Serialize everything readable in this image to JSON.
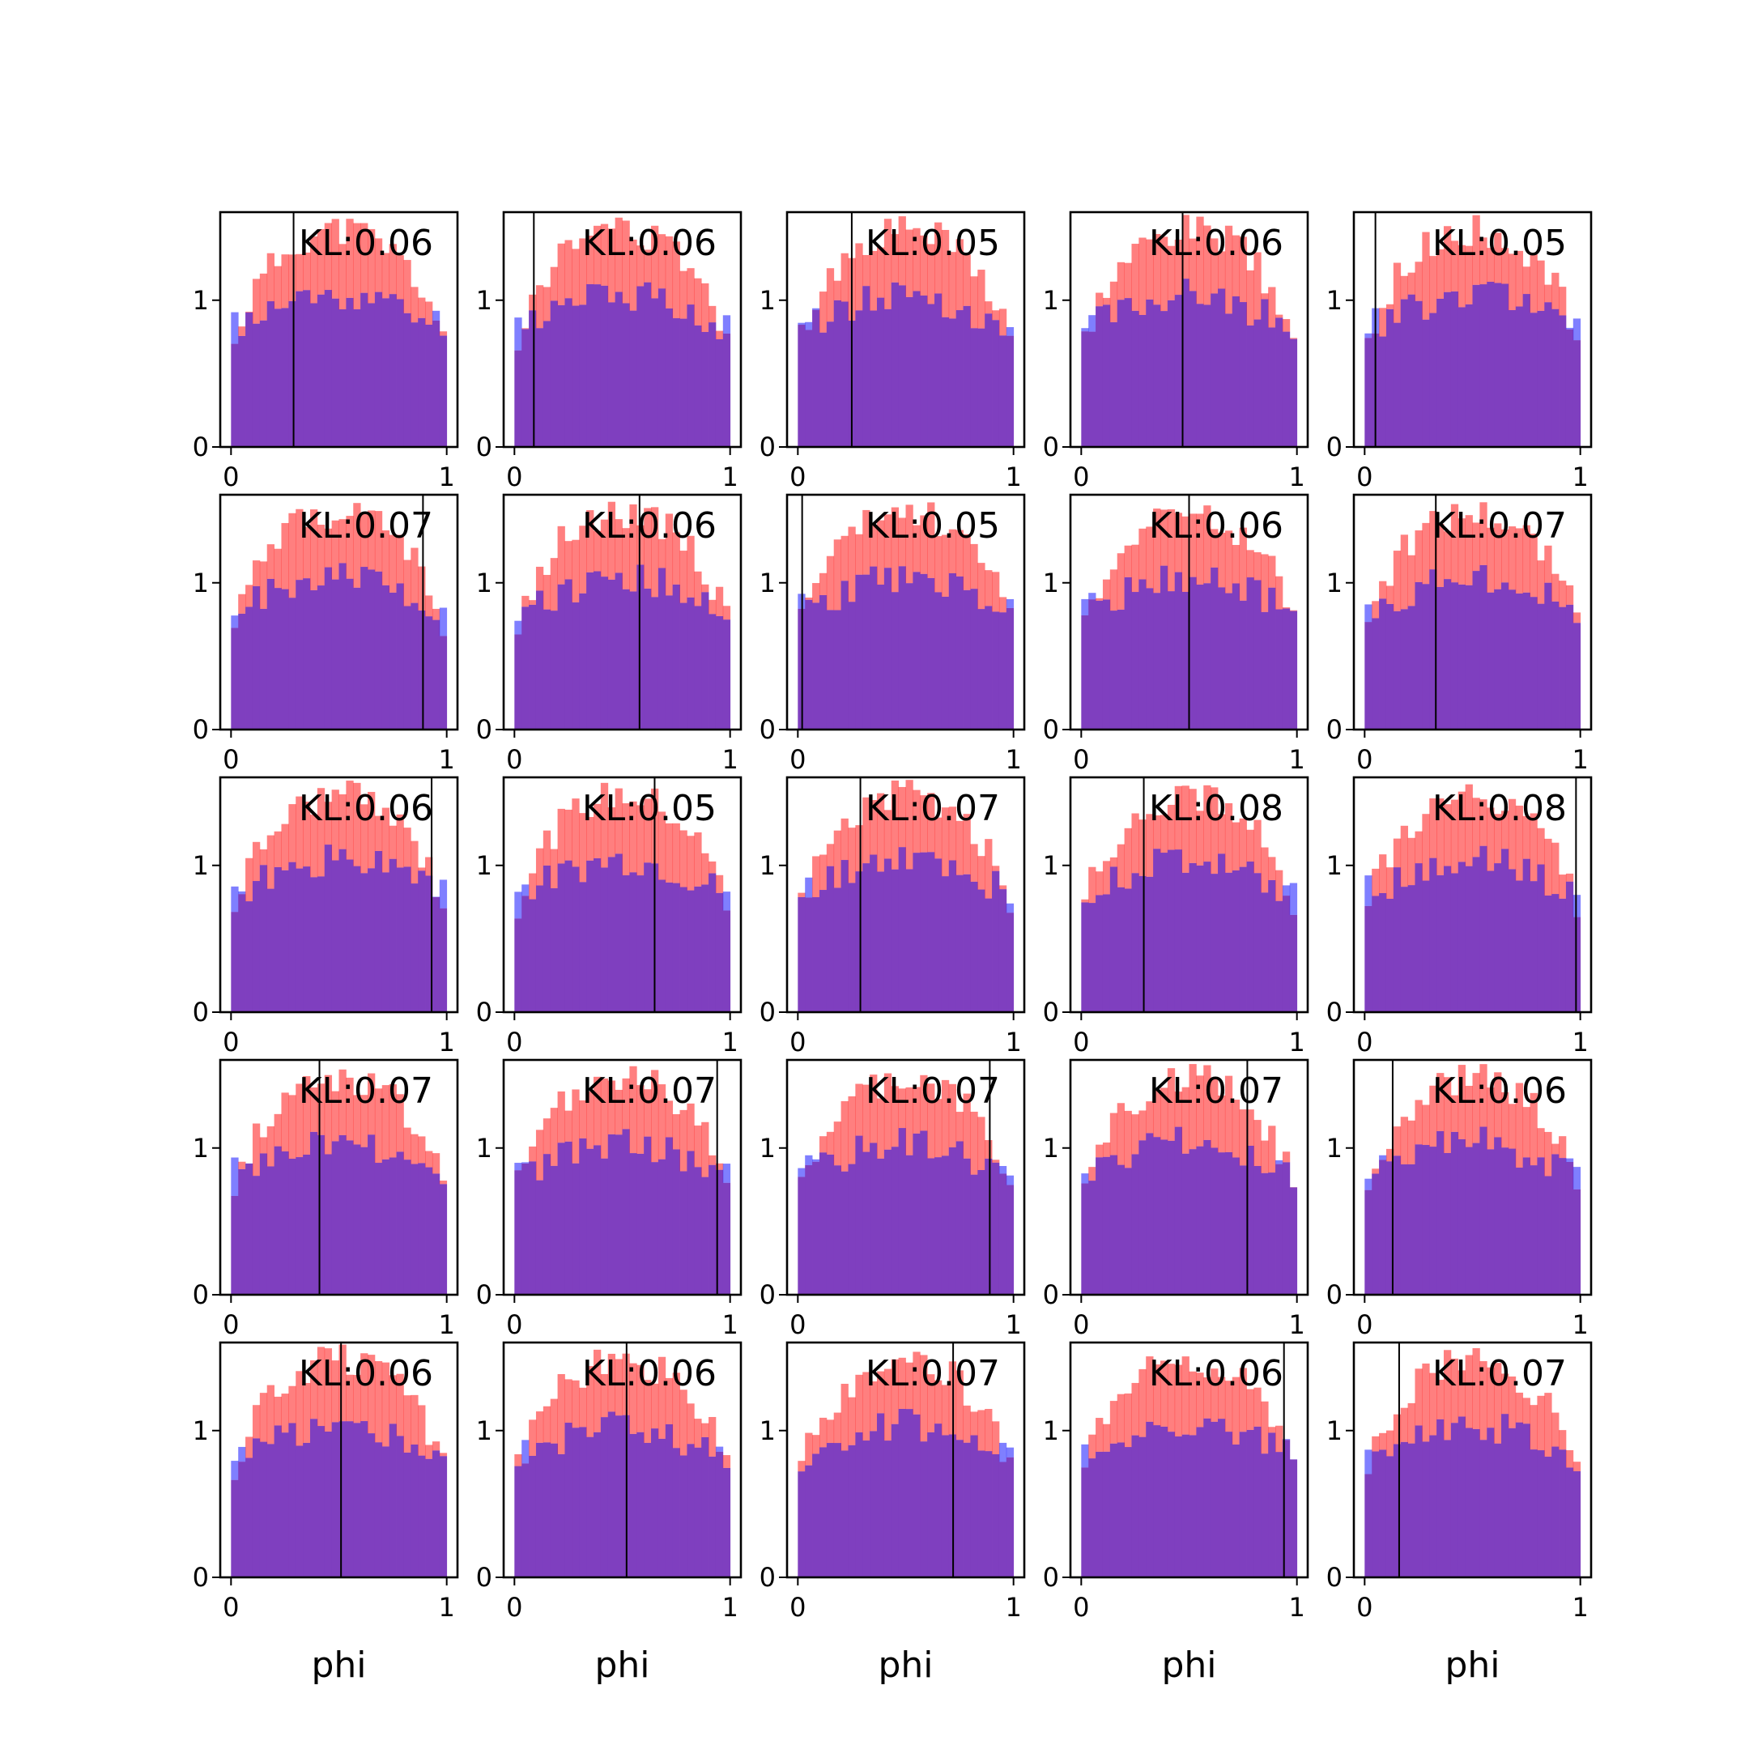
{
  "chart_data": {
    "type": "histogram-grid",
    "rows": 5,
    "cols": 5,
    "xlabel": "phi",
    "xlim": [
      0,
      1
    ],
    "ylim": [
      0,
      1.6
    ],
    "xticks": [
      0,
      1
    ],
    "yticks": [
      0,
      1
    ],
    "bins": 30,
    "colors": {
      "blue": "#0000ff",
      "red": "#ff0000",
      "overlap": "#7f3fbf",
      "vline": "#000000",
      "axes": "#000000",
      "background": "#ffffff"
    },
    "series_alpha": 0.5,
    "panels": [
      {
        "row": 0,
        "col": 0,
        "kl": "KL:0.06",
        "vline": 0.29,
        "seed": 11
      },
      {
        "row": 0,
        "col": 1,
        "kl": "KL:0.06",
        "vline": 0.09,
        "seed": 12
      },
      {
        "row": 0,
        "col": 2,
        "kl": "KL:0.05",
        "vline": 0.25,
        "seed": 13
      },
      {
        "row": 0,
        "col": 3,
        "kl": "KL:0.06",
        "vline": 0.47,
        "seed": 14
      },
      {
        "row": 0,
        "col": 4,
        "kl": "KL:0.05",
        "vline": 0.05,
        "seed": 15
      },
      {
        "row": 1,
        "col": 0,
        "kl": "KL:0.07",
        "vline": 0.89,
        "seed": 21
      },
      {
        "row": 1,
        "col": 1,
        "kl": "KL:0.06",
        "vline": 0.58,
        "seed": 22
      },
      {
        "row": 1,
        "col": 2,
        "kl": "KL:0.05",
        "vline": 0.02,
        "seed": 23
      },
      {
        "row": 1,
        "col": 3,
        "kl": "KL:0.06",
        "vline": 0.5,
        "seed": 24
      },
      {
        "row": 1,
        "col": 4,
        "kl": "KL:0.07",
        "vline": 0.33,
        "seed": 25
      },
      {
        "row": 2,
        "col": 0,
        "kl": "KL:0.06",
        "vline": 0.93,
        "seed": 31
      },
      {
        "row": 2,
        "col": 1,
        "kl": "KL:0.05",
        "vline": 0.65,
        "seed": 32
      },
      {
        "row": 2,
        "col": 2,
        "kl": "KL:0.07",
        "vline": 0.29,
        "seed": 33
      },
      {
        "row": 2,
        "col": 3,
        "kl": "KL:0.08",
        "vline": 0.29,
        "seed": 34
      },
      {
        "row": 2,
        "col": 4,
        "kl": "KL:0.08",
        "vline": 0.98,
        "seed": 35
      },
      {
        "row": 3,
        "col": 0,
        "kl": "KL:0.07",
        "vline": 0.41,
        "seed": 41
      },
      {
        "row": 3,
        "col": 1,
        "kl": "KL:0.07",
        "vline": 0.94,
        "seed": 42
      },
      {
        "row": 3,
        "col": 2,
        "kl": "KL:0.07",
        "vline": 0.89,
        "seed": 43
      },
      {
        "row": 3,
        "col": 3,
        "kl": "KL:0.07",
        "vline": 0.77,
        "seed": 44
      },
      {
        "row": 3,
        "col": 4,
        "kl": "KL:0.06",
        "vline": 0.13,
        "seed": 45
      },
      {
        "row": 4,
        "col": 0,
        "kl": "KL:0.06",
        "vline": 0.51,
        "seed": 51
      },
      {
        "row": 4,
        "col": 1,
        "kl": "KL:0.06",
        "vline": 0.52,
        "seed": 52
      },
      {
        "row": 4,
        "col": 2,
        "kl": "KL:0.07",
        "vline": 0.72,
        "seed": 53
      },
      {
        "row": 4,
        "col": 3,
        "kl": "KL:0.06",
        "vline": 0.94,
        "seed": 54
      },
      {
        "row": 4,
        "col": 4,
        "kl": "KL:0.07",
        "vline": 0.16,
        "seed": 55
      }
    ]
  }
}
